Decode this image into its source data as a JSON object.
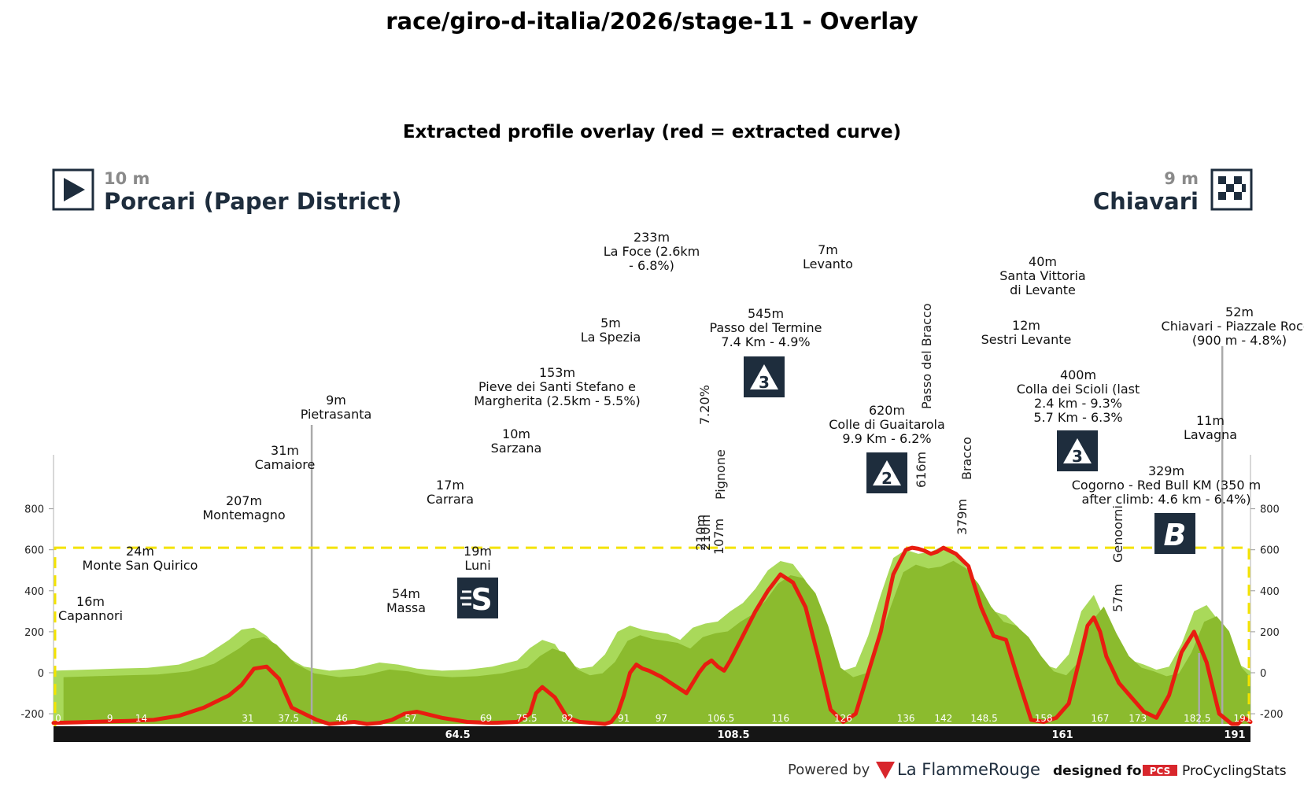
{
  "figure": {
    "title": "race/giro-d-italia/2026/stage-11 - Overlay",
    "subtitle": "Extracted profile overlay (red = extracted curve)"
  },
  "header": {
    "start_elevation": "10 m",
    "start_name": "Porcari (Paper District)",
    "finish_elevation": "9 m",
    "finish_name": "Chiavari",
    "start_icon": "play-icon",
    "finish_icon": "checkered-flag-icon"
  },
  "footer": {
    "powered_by": "Powered by",
    "brand": "La FlammeRouge",
    "designed_for": "designed for",
    "pcs_badge": "PCS",
    "pcs_name": "ProCyclingStats"
  },
  "colors": {
    "profile_dark": "#8bbb2e",
    "profile_light": "#a9d95a",
    "extracted_curve": "#e81d10",
    "bbox_dashed": "#f4e300",
    "distance_bar": "#151515",
    "climb_badge": "#1e2d3d",
    "pcs_red": "#d8262c"
  },
  "chart_data": {
    "type": "area",
    "xlabel": "",
    "ylabel": "",
    "xlim": [
      0,
      191
    ],
    "ylim": [
      -250,
      1050
    ],
    "y_ticks": [
      -200,
      0,
      200,
      400,
      600,
      800
    ],
    "y_tick_labels": [
      "-200",
      "0",
      "200",
      "400",
      "600",
      "800"
    ],
    "x_ticks": [
      0,
      9,
      14,
      31,
      37.5,
      46,
      57,
      69,
      75.5,
      82,
      91,
      97,
      106.5,
      116,
      126,
      136,
      142,
      148.5,
      158,
      167,
      173,
      182.5,
      191
    ],
    "x_tick_labels": [
      "0",
      "9",
      "14",
      "31",
      "37.5",
      "46",
      "57",
      "69",
      "75.5",
      "82",
      "91",
      "97",
      "106.5",
      "116",
      "126",
      "136",
      "142",
      "148.5",
      "158",
      "167",
      "173",
      "182.5",
      "191"
    ],
    "bar_marks": [
      {
        "km": 64.5,
        "label": "64.5"
      },
      {
        "km": 108.5,
        "label": "108.5"
      },
      {
        "km": 161,
        "label": "161"
      },
      {
        "km": 191,
        "label": "191"
      }
    ],
    "bbox_elevation_range": [
      -250,
      610
    ],
    "series": [
      {
        "role": "profile",
        "x": [
          0,
          5,
          10,
          15,
          20,
          24,
          28,
          30,
          32,
          34,
          37,
          40,
          44,
          48,
          52,
          55,
          58,
          62,
          66,
          70,
          74,
          76,
          78,
          80,
          82,
          84,
          86,
          88,
          90,
          92,
          94,
          96,
          98,
          100,
          102,
          104,
          106,
          108,
          110,
          112,
          114,
          116,
          118,
          120,
          122,
          124,
          126,
          128,
          130,
          132,
          134,
          136,
          138,
          140,
          142,
          144,
          146,
          148,
          150,
          152,
          154,
          156,
          158,
          160,
          162,
          164,
          166,
          168,
          170,
          172,
          174,
          176,
          178,
          180,
          182,
          184,
          186,
          188,
          191
        ],
        "y": [
          10,
          15,
          20,
          24,
          40,
          80,
          160,
          210,
          220,
          180,
          80,
          30,
          10,
          20,
          50,
          40,
          20,
          10,
          15,
          30,
          60,
          120,
          160,
          140,
          50,
          20,
          30,
          90,
          200,
          230,
          210,
          200,
          190,
          160,
          220,
          240,
          250,
          300,
          340,
          410,
          500,
          545,
          530,
          450,
          280,
          60,
          10,
          30,
          180,
          380,
          560,
          600,
          580,
          590,
          620,
          580,
          500,
          380,
          300,
          280,
          220,
          120,
          40,
          20,
          90,
          300,
          380,
          240,
          120,
          60,
          40,
          15,
          30,
          140,
          300,
          330,
          250,
          60,
          9
        ]
      },
      {
        "role": "extracted",
        "x": [
          0,
          4,
          8,
          12,
          16,
          20,
          24,
          26,
          28,
          30,
          32,
          34,
          36,
          38,
          40,
          42,
          44,
          46,
          48,
          50,
          52,
          54,
          56,
          58,
          62,
          66,
          70,
          74,
          76,
          77,
          78,
          80,
          82,
          84,
          86,
          88,
          89,
          90,
          91,
          92,
          93,
          94,
          95,
          97,
          99,
          101,
          103,
          104,
          105,
          106,
          107,
          108,
          110,
          112,
          114,
          116,
          118,
          120,
          122,
          124,
          126,
          128,
          130,
          132,
          134,
          136,
          137,
          138,
          139,
          140,
          141,
          142,
          144,
          146,
          148,
          150,
          152,
          154,
          156,
          158,
          160,
          162,
          164,
          165,
          166,
          167,
          168,
          170,
          172,
          174,
          176,
          178,
          180,
          182,
          184,
          186,
          188,
          189,
          190,
          191
        ],
        "y": [
          -245,
          -242,
          -238,
          -235,
          -230,
          -210,
          -170,
          -140,
          -110,
          -60,
          20,
          30,
          -30,
          -170,
          -200,
          -230,
          -250,
          -245,
          -240,
          -250,
          -245,
          -230,
          -200,
          -190,
          -220,
          -240,
          -245,
          -240,
          -200,
          -100,
          -70,
          -120,
          -220,
          -240,
          -245,
          -250,
          -240,
          -200,
          -110,
          0,
          40,
          20,
          10,
          -20,
          -60,
          -100,
          0,
          40,
          60,
          30,
          10,
          60,
          180,
          300,
          400,
          480,
          440,
          320,
          80,
          -180,
          -240,
          -200,
          0,
          200,
          480,
          600,
          610,
          605,
          595,
          580,
          590,
          610,
          580,
          520,
          320,
          180,
          160,
          -40,
          -230,
          -240,
          -220,
          -150,
          100,
          230,
          270,
          200,
          80,
          -50,
          -120,
          -190,
          -220,
          -110,
          100,
          200,
          50,
          -200,
          -250,
          -250,
          -220,
          -240
        ]
      }
    ],
    "annotations": [
      {
        "elev": "16m",
        "name": "Capannori"
      },
      {
        "elev": "24m",
        "name": "Monte San Quirico"
      },
      {
        "elev": "207m",
        "name": "Montemagno"
      },
      {
        "elev": "31m",
        "name": "Camaiore"
      },
      {
        "elev": "9m",
        "name": "Pietrasanta"
      },
      {
        "elev": "54m",
        "name": "Massa"
      },
      {
        "elev": "19m",
        "name": "Luni"
      },
      {
        "elev": "17m",
        "name": "Carrara"
      },
      {
        "elev": "10m",
        "name": "Sarzana"
      },
      {
        "elev": "153m",
        "name": "Pieve dei Santi Stefano e",
        "name2": "Margherita (2.5km - 5.5%)"
      },
      {
        "elev": "5m",
        "name": "La Spezia"
      },
      {
        "elev": "233m",
        "name": "La Foce (2.6km",
        "name2": "- 6.8%)"
      },
      {
        "elev": "545m",
        "name": "Passo del Termine",
        "name2": "7.4 Km - 4.9%"
      },
      {
        "elev": "7m",
        "name": "Levanto"
      },
      {
        "elev": "620m",
        "name": "Colle di Guaitarola",
        "name2": "9.9 Km - 6.2%"
      },
      {
        "elev": "40m",
        "name": "Santa Vittoria",
        "name2": "di Levante"
      },
      {
        "elev": "12m",
        "name": "Sestri Levante"
      },
      {
        "elev": "400m",
        "name": "Colla dei Scioli (last",
        "name2": "2.4 km - 9.3%",
        "name3": "5.7 Km - 6.3%"
      },
      {
        "elev": "52m",
        "name": "Chiavari - Piazzale Rocca",
        "name2": "(900 m - 4.8%)"
      },
      {
        "elev": "11m",
        "name": "Lavagna"
      },
      {
        "elev": "329m",
        "name": "Cogorno - Red Bull KM (350 m",
        "name2": "after climb: 4.6 km - 6.4%)"
      }
    ],
    "vertical_labels": [
      {
        "text": "210m",
        "km": 105.6
      },
      {
        "text": "210m",
        "km": 105.8
      },
      {
        "text": "7.20%",
        "km": 106.2
      },
      {
        "text": "107m",
        "km": 106.8
      },
      {
        "text": "Pignone",
        "km": 107.0
      },
      {
        "text": "616m",
        "km": 139.5
      },
      {
        "text": "Passo del Bracco",
        "km": 140.0
      },
      {
        "text": "379m",
        "km": 151.0
      },
      {
        "text": "Bracco",
        "km": 151.5
      },
      {
        "text": "Genoorni",
        "km": 175.5
      },
      {
        "text": "57m",
        "km": 175.5
      }
    ],
    "badges": [
      {
        "label": "S",
        "type": "sprint",
        "km": 68
      },
      {
        "label": "3",
        "type": "climb",
        "km": 117
      },
      {
        "label": "2",
        "type": "climb",
        "km": 136
      },
      {
        "label": "3",
        "type": "climb",
        "km": 164.5
      },
      {
        "label": "B",
        "type": "bonus",
        "km": 181.5
      }
    ],
    "grid": false,
    "legend": "none"
  }
}
